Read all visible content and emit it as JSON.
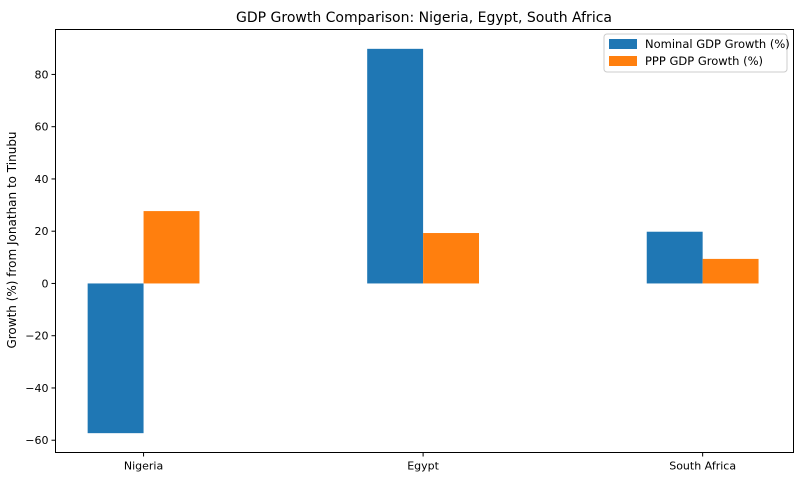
{
  "chart_data": {
    "type": "bar",
    "title": "GDP Growth Comparison: Nigeria, Egypt, South Africa",
    "xlabel": "",
    "ylabel": "Growth (%) from Jonathan to Tinubu",
    "categories": [
      "Nigeria",
      "Egypt",
      "South Africa"
    ],
    "series": [
      {
        "name": "Nominal GDP Growth (%)",
        "color": "#1f77b4",
        "values": [
          -57.3,
          89.8,
          19.8
        ]
      },
      {
        "name": "PPP GDP Growth (%)",
        "color": "#ff7f0e",
        "values": [
          27.7,
          19.3,
          9.4
        ]
      }
    ],
    "ylim": [
      -64.7,
      97.2
    ],
    "yticks": [
      -60,
      -40,
      -20,
      0,
      20,
      40,
      60,
      80
    ],
    "grid": false,
    "legend": "top-right"
  }
}
